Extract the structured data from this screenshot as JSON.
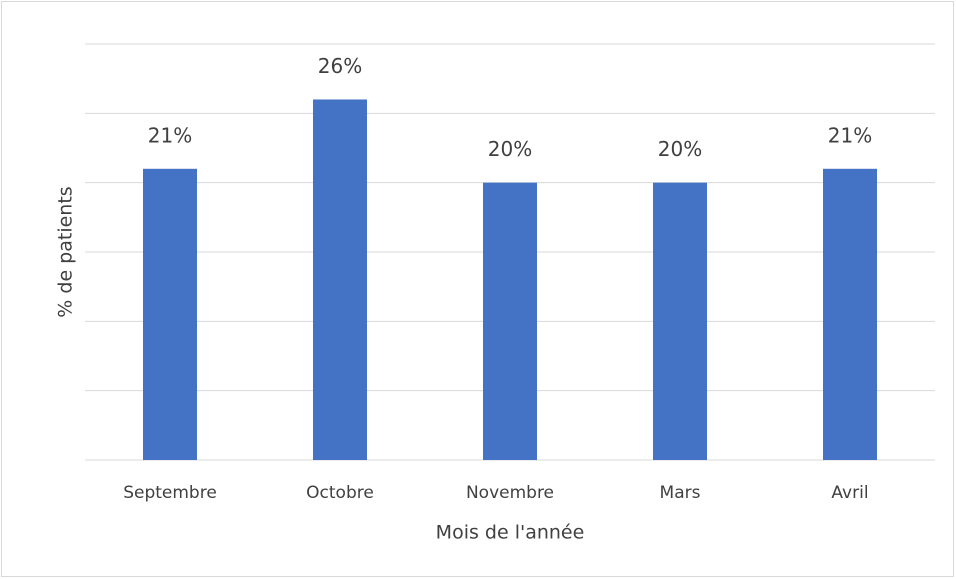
{
  "chart_data": {
    "type": "bar",
    "x_label": "Mois de l'année",
    "y_label": "% de patients",
    "categories": [
      "Septembre",
      "Octobre",
      "Novembre",
      "Mars",
      "Avril"
    ],
    "values": [
      21,
      26,
      20,
      20,
      21
    ],
    "value_labels": [
      "21%",
      "26%",
      "20%",
      "20%",
      "21%"
    ],
    "color": "#4472c4",
    "ylim": [
      0,
      30
    ],
    "yticks": [
      0,
      5,
      10,
      15,
      20,
      25,
      30
    ],
    "grid": true
  }
}
